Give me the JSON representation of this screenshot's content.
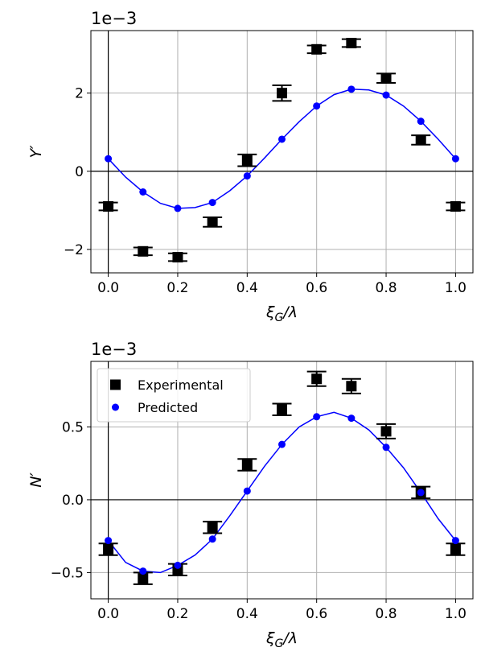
{
  "chart_data": [
    {
      "type": "scatter",
      "offset_text": "1e−3",
      "xlabel": "ξ_G/λ",
      "ylabel": "Y′",
      "xlim": [
        -0.05,
        1.05
      ],
      "ylim": [
        -2.6,
        3.6
      ],
      "x_ticks": [
        0.0,
        0.2,
        0.4,
        0.6,
        0.8,
        1.0
      ],
      "x_tick_labels": [
        "0.0",
        "0.2",
        "0.4",
        "0.6",
        "0.8",
        "1.0"
      ],
      "y_ticks": [
        -2,
        0,
        2
      ],
      "y_tick_labels": [
        "−2",
        "0",
        "2"
      ],
      "grid": true,
      "series": [
        {
          "kind": "experimental",
          "marker": "square-errorbar",
          "color": "#000000",
          "x": [
            0.0,
            0.1,
            0.2,
            0.3,
            0.4,
            0.5,
            0.6,
            0.7,
            0.8,
            0.9,
            1.0
          ],
          "y": [
            -0.9,
            -2.05,
            -2.2,
            -1.3,
            0.28,
            2.0,
            3.12,
            3.28,
            2.38,
            0.8,
            -0.9
          ],
          "err": [
            0.1,
            0.1,
            0.1,
            0.12,
            0.15,
            0.2,
            0.1,
            0.1,
            0.12,
            0.12,
            0.1
          ]
        },
        {
          "kind": "predicted",
          "marker": "circle",
          "color": "#0000ff",
          "x": [
            0.0,
            0.1,
            0.2,
            0.3,
            0.4,
            0.5,
            0.6,
            0.7,
            0.8,
            0.9,
            1.0
          ],
          "y": [
            0.32,
            -0.53,
            -0.95,
            -0.8,
            -0.12,
            0.82,
            1.67,
            2.1,
            1.95,
            1.28,
            0.32
          ]
        }
      ],
      "curve": {
        "color": "#0000ff",
        "x": [
          0.0,
          0.05,
          0.1,
          0.15,
          0.2,
          0.25,
          0.3,
          0.35,
          0.4,
          0.45,
          0.5,
          0.55,
          0.6,
          0.65,
          0.7,
          0.75,
          0.8,
          0.85,
          0.9,
          0.95,
          1.0
        ],
        "y": [
          0.32,
          -0.15,
          -0.53,
          -0.82,
          -0.95,
          -0.93,
          -0.8,
          -0.5,
          -0.12,
          0.34,
          0.82,
          1.27,
          1.67,
          1.96,
          2.1,
          2.08,
          1.95,
          1.67,
          1.28,
          0.82,
          0.32
        ]
      }
    },
    {
      "type": "scatter",
      "offset_text": "1e−3",
      "xlabel": "ξ_G/λ",
      "ylabel": "N′",
      "xlim": [
        -0.05,
        1.05
      ],
      "ylim": [
        -0.68,
        0.95
      ],
      "x_ticks": [
        0.0,
        0.2,
        0.4,
        0.6,
        0.8,
        1.0
      ],
      "x_tick_labels": [
        "0.0",
        "0.2",
        "0.4",
        "0.6",
        "0.8",
        "1.0"
      ],
      "y_ticks": [
        -0.5,
        0.0,
        0.5
      ],
      "y_tick_labels": [
        "−0.5",
        "0.0",
        "0.5"
      ],
      "grid": true,
      "legend": {
        "position": "top-left",
        "entries": [
          {
            "label": "Experimental",
            "marker": "square",
            "color": "#000000"
          },
          {
            "label": "Predicted",
            "marker": "circle",
            "color": "#0000ff"
          }
        ]
      },
      "series": [
        {
          "kind": "experimental",
          "marker": "square-errorbar",
          "color": "#000000",
          "x": [
            0.0,
            0.1,
            0.2,
            0.3,
            0.4,
            0.5,
            0.6,
            0.7,
            0.8,
            0.9,
            1.0
          ],
          "y": [
            -0.34,
            -0.54,
            -0.48,
            -0.19,
            0.24,
            0.62,
            0.83,
            0.78,
            0.47,
            0.05,
            -0.34
          ],
          "err": [
            0.04,
            0.04,
            0.04,
            0.04,
            0.04,
            0.04,
            0.05,
            0.05,
            0.05,
            0.04,
            0.04
          ]
        },
        {
          "kind": "predicted",
          "marker": "circle",
          "color": "#0000ff",
          "x": [
            0.0,
            0.1,
            0.2,
            0.3,
            0.4,
            0.5,
            0.6,
            0.7,
            0.8,
            0.9,
            1.0
          ],
          "y": [
            -0.28,
            -0.49,
            -0.45,
            -0.27,
            0.06,
            0.38,
            0.57,
            0.56,
            0.36,
            0.05,
            -0.28
          ]
        }
      ],
      "curve": {
        "color": "#0000ff",
        "x": [
          0.0,
          0.05,
          0.1,
          0.15,
          0.2,
          0.25,
          0.3,
          0.35,
          0.4,
          0.45,
          0.5,
          0.55,
          0.6,
          0.65,
          0.7,
          0.75,
          0.8,
          0.85,
          0.9,
          0.95,
          1.0
        ],
        "y": [
          -0.28,
          -0.43,
          -0.49,
          -0.5,
          -0.45,
          -0.38,
          -0.27,
          -0.11,
          0.06,
          0.23,
          0.38,
          0.5,
          0.57,
          0.6,
          0.56,
          0.48,
          0.36,
          0.22,
          0.05,
          -0.13,
          -0.28
        ]
      }
    }
  ]
}
